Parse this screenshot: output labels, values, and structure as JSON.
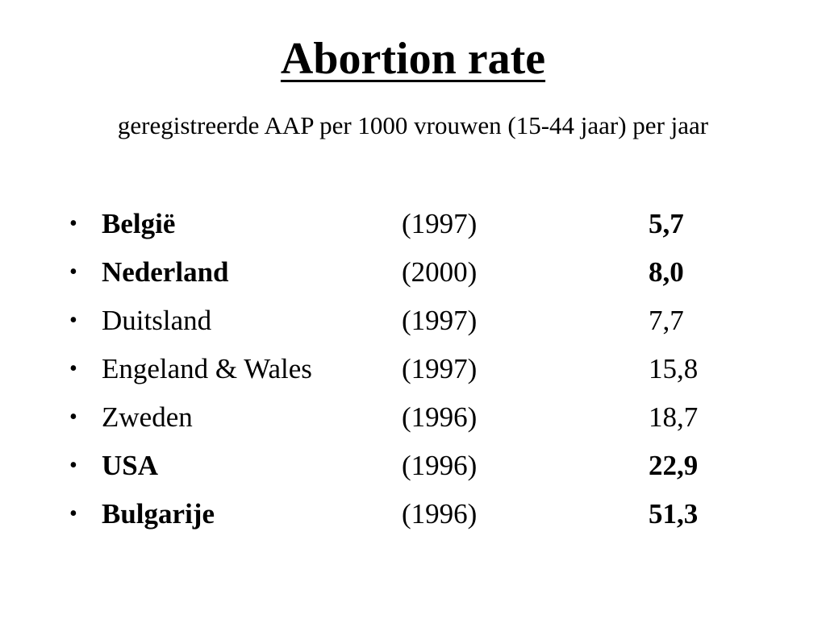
{
  "slide": {
    "title": "Abortion rate",
    "subtitle": "geregistreerde  AAP per 1000 vrouwen (15-44 jaar) per jaar",
    "bullet_glyph": "•",
    "rows": [
      {
        "country": "België",
        "year": "(1997)",
        "value": "5,7",
        "bold": true
      },
      {
        "country": "Nederland",
        "year": "(2000)",
        "value": "8,0",
        "bold": true
      },
      {
        "country": "Duitsland",
        "year": "(1997)",
        "value": "7,7",
        "bold": false
      },
      {
        "country": "Engeland & Wales",
        "year": "(1997)",
        "value": "15,8",
        "bold": false
      },
      {
        "country": "Zweden",
        "year": "(1996)",
        "value": "18,7",
        "bold": false
      },
      {
        "country": "USA",
        "year": "(1996)",
        "value": "22,9",
        "bold": true
      },
      {
        "country": "Bulgarije",
        "year": "(1996)",
        "value": "51,3",
        "bold": true
      }
    ]
  }
}
